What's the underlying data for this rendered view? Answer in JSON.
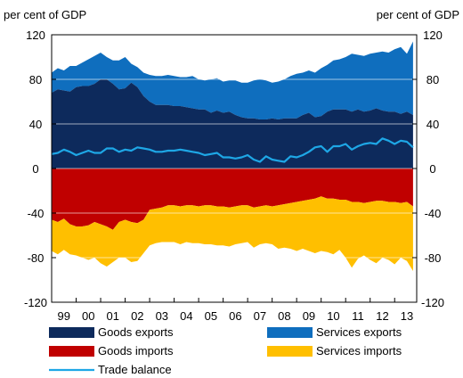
{
  "chart_data": {
    "type": "area",
    "y_unit_left": "per cent of GDP",
    "y_unit_right": "per cent of GDP",
    "ylim": [
      -120,
      120
    ],
    "yticks": [
      120,
      80,
      40,
      0,
      -40,
      -80,
      -120
    ],
    "xlim": [
      1999,
      2013.9
    ],
    "x_tick_labels": [
      "99",
      "00",
      "01",
      "02",
      "03",
      "04",
      "05",
      "06",
      "07",
      "08",
      "09",
      "10",
      "11",
      "12",
      "13"
    ],
    "x": [
      1999.0,
      1999.25,
      1999.5,
      1999.75,
      2000.0,
      2000.25,
      2000.5,
      2000.75,
      2001.0,
      2001.25,
      2001.5,
      2001.75,
      2002.0,
      2002.25,
      2002.5,
      2002.75,
      2003.0,
      2003.25,
      2003.5,
      2003.75,
      2004.0,
      2004.25,
      2004.5,
      2004.75,
      2005.0,
      2005.25,
      2005.5,
      2005.75,
      2006.0,
      2006.25,
      2006.5,
      2006.75,
      2007.0,
      2007.25,
      2007.5,
      2007.75,
      2008.0,
      2008.25,
      2008.5,
      2008.75,
      2009.0,
      2009.25,
      2009.5,
      2009.75,
      2010.0,
      2010.25,
      2010.5,
      2010.75,
      2011.0,
      2011.25,
      2011.5,
      2011.75,
      2012.0,
      2012.25,
      2012.5,
      2012.75,
      2013.0,
      2013.25,
      2013.5,
      2013.75
    ],
    "series": [
      {
        "name": "Goods exports",
        "color": "#0d2a5c",
        "values": [
          68,
          71,
          70,
          69,
          73,
          74,
          74,
          76,
          80,
          80,
          76,
          71,
          72,
          77,
          73,
          65,
          60,
          57,
          57,
          57,
          56,
          56,
          55,
          54,
          53,
          53,
          50,
          52,
          50,
          51,
          48,
          46,
          45,
          45,
          44,
          44,
          45,
          44,
          45,
          45,
          45,
          48,
          50,
          46,
          47,
          51,
          53,
          53,
          53,
          51,
          53,
          51,
          52,
          54,
          52,
          51,
          51,
          49,
          51,
          48
        ]
      },
      {
        "name": "Services exports",
        "color": "#0f6ebe",
        "values": [
          86,
          90,
          88,
          92,
          92,
          95,
          98,
          101,
          104,
          100,
          97,
          97,
          100,
          94,
          91,
          86,
          84,
          83,
          83,
          84,
          83,
          82,
          82,
          83,
          80,
          79,
          80,
          81,
          78,
          79,
          79,
          77,
          77,
          79,
          80,
          79,
          77,
          78,
          80,
          83,
          85,
          86,
          88,
          86,
          90,
          93,
          97,
          98,
          100,
          103,
          102,
          101,
          103,
          104,
          105,
          104,
          107,
          109,
          103,
          114
        ]
      },
      {
        "name": "Goods imports",
        "color": "#c00000",
        "values": [
          -46,
          -48,
          -45,
          -50,
          -52,
          -52,
          -51,
          -48,
          -50,
          -52,
          -55,
          -48,
          -46,
          -48,
          -49,
          -46,
          -37,
          -36,
          -35,
          -33,
          -33,
          -34,
          -33,
          -33,
          -34,
          -33,
          -33,
          -34,
          -34,
          -35,
          -34,
          -33,
          -33,
          -35,
          -34,
          -33,
          -34,
          -33,
          -32,
          -31,
          -30,
          -29,
          -28,
          -27,
          -25,
          -27,
          -27,
          -28,
          -28,
          -30,
          -30,
          -31,
          -30,
          -29,
          -29,
          -30,
          -30,
          -31,
          -30,
          -34
        ]
      },
      {
        "name": "Services imports",
        "color": "#ffbf00",
        "values": [
          -74,
          -77,
          -73,
          -77,
          -78,
          -80,
          -82,
          -80,
          -85,
          -88,
          -84,
          -80,
          -80,
          -84,
          -83,
          -76,
          -69,
          -67,
          -66,
          -66,
          -66,
          -68,
          -66,
          -67,
          -67,
          -68,
          -68,
          -69,
          -69,
          -70,
          -68,
          -67,
          -66,
          -71,
          -68,
          -67,
          -68,
          -72,
          -71,
          -72,
          -74,
          -72,
          -74,
          -76,
          -74,
          -75,
          -77,
          -73,
          -80,
          -89,
          -81,
          -78,
          -82,
          -85,
          -80,
          -82,
          -86,
          -80,
          -83,
          -92
        ]
      },
      {
        "name": "Trade balance",
        "color": "#1ea7e6",
        "values": [
          13,
          14,
          17,
          15,
          12,
          14,
          16,
          14,
          14,
          18,
          18,
          15,
          17,
          16,
          19,
          18,
          17,
          15,
          15,
          16,
          16,
          17,
          16,
          15,
          14,
          12,
          13,
          14,
          10,
          10,
          9,
          10,
          12,
          8,
          6,
          11,
          8,
          7,
          6,
          11,
          10,
          12,
          15,
          19,
          20,
          15,
          20,
          20,
          22,
          17,
          20,
          22,
          23,
          22,
          27,
          25,
          22,
          25,
          24,
          19
        ]
      }
    ],
    "legend": {
      "items": [
        {
          "label": "Goods exports",
          "color": "#0d2a5c",
          "kind": "box"
        },
        {
          "label": "Services exports",
          "color": "#0f6ebe",
          "kind": "box"
        },
        {
          "label": "Goods imports",
          "color": "#c00000",
          "kind": "box"
        },
        {
          "label": "Services imports",
          "color": "#ffbf00",
          "kind": "box"
        },
        {
          "label": "Trade balance",
          "color": "#1ea7e6",
          "kind": "line"
        }
      ]
    },
    "grid": "horizontal",
    "gridline_color": "#ffffff"
  }
}
